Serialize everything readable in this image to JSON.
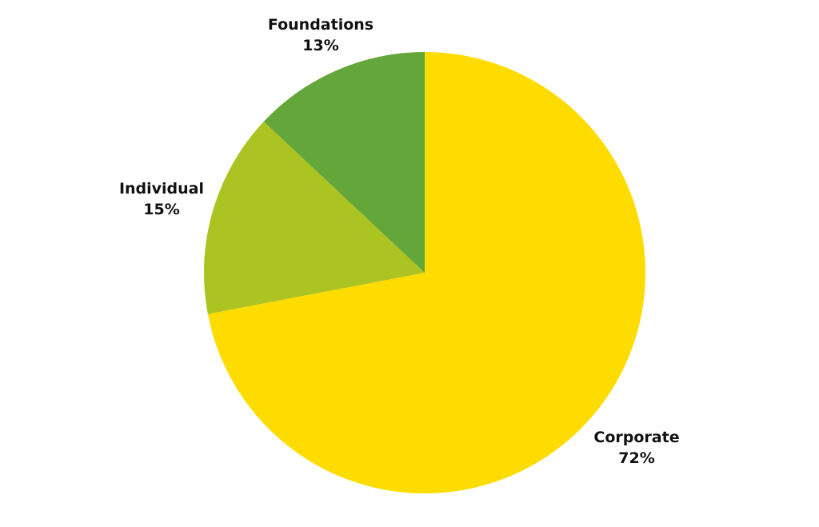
{
  "chart_data": {
    "type": "pie",
    "title": "",
    "start_angle_deg": 0,
    "direction": "clockwise",
    "slices": [
      {
        "label": "Corporate",
        "value_label": "72%",
        "value": 72,
        "color": "#FFDC00"
      },
      {
        "label": "Individual",
        "value_label": "15%",
        "value": 15,
        "color": "#ABC421"
      },
      {
        "label": "Foundations",
        "value_label": "13%",
        "value": 13,
        "color": "#63A63A"
      }
    ]
  }
}
